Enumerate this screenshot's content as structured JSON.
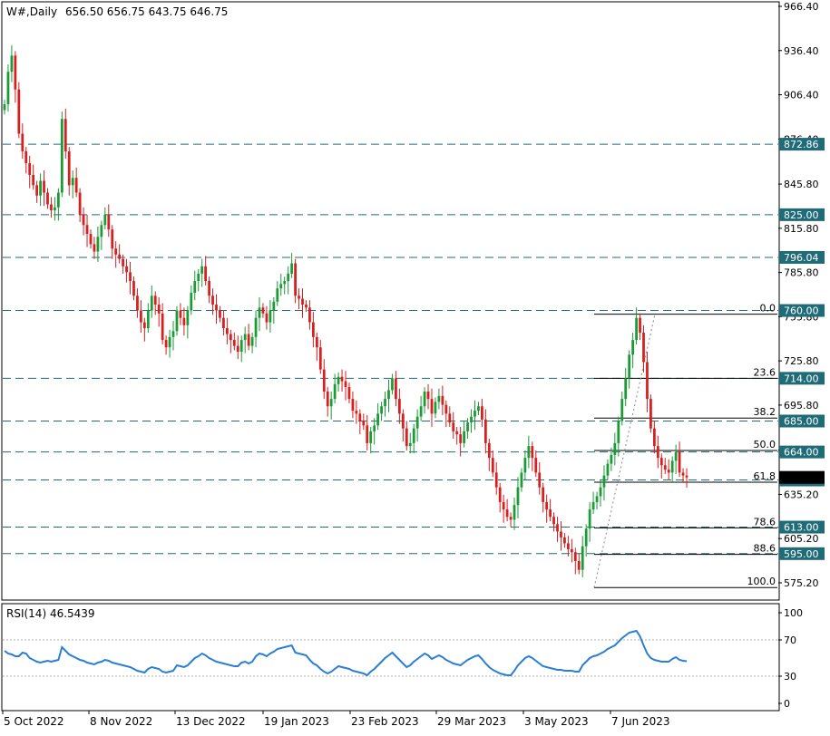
{
  "header": {
    "symbol": "W#,Daily",
    "ohlc": "656.50 656.75 643.75 646.75"
  },
  "colors": {
    "bull": "#1a9b35",
    "bear": "#d81e1e",
    "level": "#1f6b78",
    "rsi": "#2a7fd4",
    "price_tag": "#000000"
  },
  "chart_data": [
    {
      "type": "candlestick",
      "title": "W#,Daily",
      "x_ticks": [
        "5 Oct 2022",
        "8 Nov 2022",
        "13 Dec 2022",
        "19 Jan 2023",
        "23 Feb 2023",
        "29 Mar 2023",
        "3 May 2023",
        "7 Jun 2023"
      ],
      "y_ticks": [
        "966.40",
        "936.40",
        "906.40",
        "876.40",
        "845.80",
        "815.80",
        "785.80",
        "755.80",
        "725.80",
        "695.80",
        "665.20",
        "635.20",
        "605.20",
        "575.20"
      ],
      "ylim": [
        569.4,
        966.4
      ],
      "levels": [
        {
          "value": 872.86,
          "label": "872.86"
        },
        {
          "value": 825.0,
          "label": "825.00"
        },
        {
          "value": 796.04,
          "label": "796.04"
        },
        {
          "value": 760.0,
          "label": "760.00"
        },
        {
          "value": 714.0,
          "label": "714.00"
        },
        {
          "value": 685.0,
          "label": "685.00"
        },
        {
          "value": 664.0,
          "label": "664.00"
        },
        {
          "value": 645.0,
          "label": "645.00"
        },
        {
          "value": 613.0,
          "label": "613.00"
        },
        {
          "value": 595.0,
          "label": "595.00"
        }
      ],
      "fib": [
        {
          "ratio": "0.0",
          "value": 757.5
        },
        {
          "ratio": "23.6",
          "value": 714.0
        },
        {
          "ratio": "38.2",
          "value": 687.0
        },
        {
          "ratio": "50.0",
          "value": 665.0
        },
        {
          "ratio": "61.8",
          "value": 643.5
        },
        {
          "ratio": "78.6",
          "value": 612.5
        },
        {
          "ratio": "88.6",
          "value": 594.5
        },
        {
          "ratio": "100.0",
          "value": 572.0
        }
      ],
      "current_price": 646.75,
      "closes": [
        900,
        922,
        933,
        910,
        880,
        868,
        860,
        852,
        845,
        838,
        848,
        840,
        832,
        828,
        830,
        840,
        890,
        868,
        845,
        850,
        840,
        825,
        818,
        812,
        805,
        800,
        810,
        818,
        825,
        815,
        802,
        798,
        795,
        790,
        786,
        780,
        770,
        760,
        752,
        748,
        760,
        770,
        764,
        758,
        740,
        735,
        742,
        746,
        760,
        755,
        750,
        760,
        772,
        780,
        785,
        790,
        780,
        770,
        764,
        760,
        755,
        748,
        744,
        740,
        736,
        732,
        740,
        744,
        736,
        742,
        755,
        762,
        758,
        752,
        760,
        766,
        775,
        778,
        780,
        785,
        792,
        770,
        768,
        764,
        762,
        752,
        742,
        735,
        720,
        705,
        695,
        700,
        710,
        715,
        712,
        708,
        700,
        692,
        690,
        685,
        682,
        670,
        678,
        682,
        690,
        695,
        700,
        706,
        714,
        700,
        690,
        680,
        668,
        670,
        680,
        688,
        695,
        705,
        700,
        690,
        698,
        702,
        696,
        690,
        684,
        678,
        676,
        670,
        678,
        684,
        688,
        692,
        695,
        686,
        670,
        660,
        650,
        640,
        630,
        625,
        620,
        618,
        628,
        640,
        650,
        660,
        668,
        660,
        650,
        640,
        630,
        625,
        620,
        615,
        610,
        606,
        602,
        598,
        596,
        590,
        584,
        600,
        612,
        625,
        630,
        634,
        640,
        648,
        656,
        662,
        670,
        685,
        700,
        714,
        730,
        740,
        755,
        745,
        725,
        700,
        680,
        668,
        660,
        655,
        652,
        650,
        658,
        664,
        650,
        648,
        646.75
      ],
      "rsi_label": "RSI(14) 46.5439",
      "rsi_ticks": [
        "100",
        "70",
        "30",
        "0"
      ],
      "rsi_levels": [
        70,
        30
      ],
      "rsi": [
        58,
        55,
        54,
        52,
        52,
        56,
        55,
        50,
        48,
        46,
        45,
        46,
        47,
        46,
        47,
        48,
        62,
        58,
        54,
        52,
        50,
        48,
        47,
        45,
        44,
        43,
        45,
        46,
        48,
        47,
        45,
        44,
        43,
        42,
        41,
        40,
        38,
        36,
        35,
        34,
        38,
        40,
        39,
        38,
        35,
        34,
        35,
        36,
        42,
        41,
        40,
        42,
        46,
        50,
        52,
        55,
        53,
        50,
        48,
        46,
        45,
        44,
        43,
        42,
        41,
        41,
        45,
        46,
        44,
        46,
        52,
        55,
        54,
        52,
        55,
        57,
        60,
        61,
        62,
        63,
        64,
        56,
        55,
        54,
        53,
        48,
        44,
        42,
        38,
        35,
        33,
        35,
        38,
        41,
        40,
        39,
        38,
        36,
        35,
        34,
        33,
        31,
        35,
        38,
        42,
        46,
        50,
        53,
        56,
        52,
        48,
        44,
        40,
        42,
        46,
        49,
        52,
        55,
        53,
        49,
        51,
        53,
        51,
        48,
        46,
        44,
        43,
        42,
        45,
        48,
        50,
        52,
        53,
        49,
        44,
        40,
        37,
        35,
        33,
        32,
        31,
        31,
        36,
        42,
        46,
        50,
        52,
        50,
        47,
        44,
        41,
        40,
        39,
        38,
        37,
        37,
        36,
        36,
        36,
        35,
        35,
        42,
        46,
        50,
        52,
        53,
        55,
        57,
        60,
        62,
        64,
        68,
        72,
        75,
        78,
        79,
        80,
        74,
        64,
        55,
        50,
        48,
        47,
        46,
        46,
        46,
        49,
        51,
        48,
        47,
        46.5
      ]
    }
  ]
}
